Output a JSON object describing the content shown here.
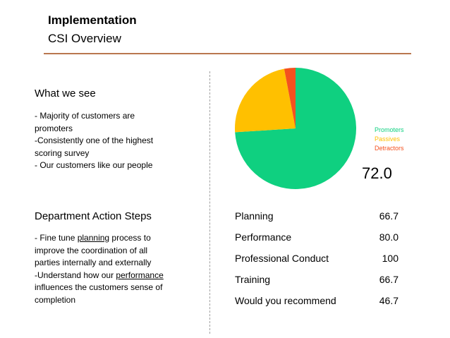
{
  "header": {
    "title": "Implementation",
    "subtitle": "CSI Overview"
  },
  "what_we_see": {
    "heading": "What we see",
    "lines": [
      "- Majority of customers are",
      "promoters",
      "-Consistently  one of the highest",
      "scoring survey",
      "- Our customers like our people"
    ]
  },
  "action_steps": {
    "heading": "Department Action Steps",
    "line1": "- Fine tune ",
    "link1": "planning",
    "line1_tail": " process to",
    "line2": "improve the coordination of all",
    "line3": "parties internally and externally",
    "line4": "-Understand how our ",
    "link2": "performance",
    "line5": "influences the customers sense of",
    "line6": "completion"
  },
  "chart_data": {
    "type": "pie",
    "slices": [
      {
        "label": "Promoters",
        "value": 74,
        "color": "#0fd080"
      },
      {
        "label": "Passives",
        "value": 23,
        "color": "#ffc000"
      },
      {
        "label": "Detractors",
        "value": 3,
        "color": "#f4511e"
      }
    ],
    "start": "top, clockwise from Promoters",
    "legend_position": "right"
  },
  "score": "72.0",
  "metrics": [
    {
      "label": "Planning",
      "value": "66.7"
    },
    {
      "label": "Performance",
      "value": "80.0"
    },
    {
      "label": "Professional Conduct",
      "value": "100"
    },
    {
      "label": "Training",
      "value": "66.7"
    },
    {
      "label": "Would you recommend",
      "value": "46.7"
    }
  ]
}
